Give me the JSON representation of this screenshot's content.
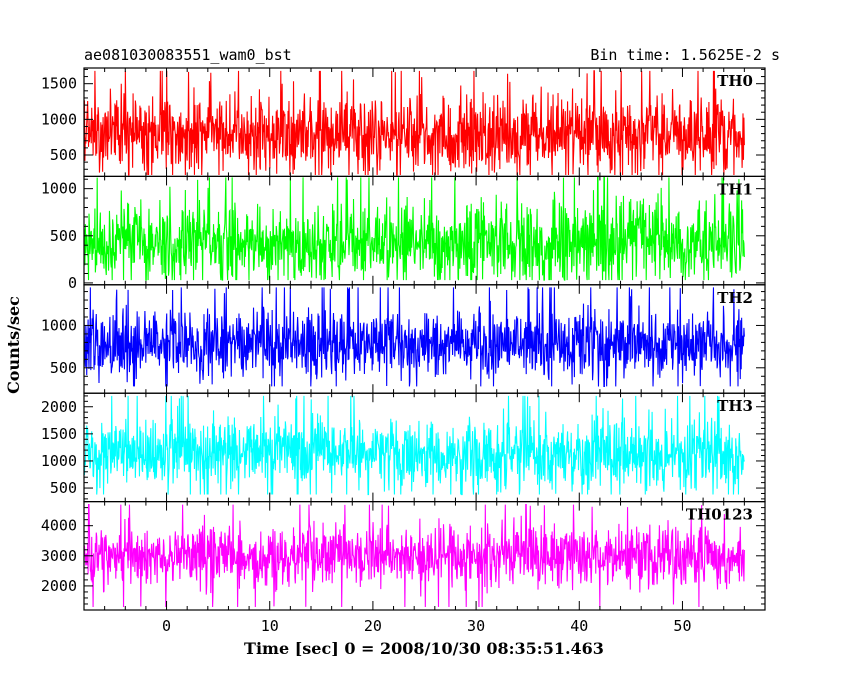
{
  "chart_data": {
    "type": "line",
    "title": "ae081030083551_wam0_bst",
    "subtitle": "Bin time: 1.5625E-2 s",
    "xlabel": "Time [sec] 0 = 2008/10/30 08:35:51.463",
    "ylabel": "Counts/sec",
    "xlim": [
      -8,
      58
    ],
    "x_data_range": [
      -8,
      56
    ],
    "xticks_major": [
      0,
      10,
      20,
      30,
      40,
      50
    ],
    "xtick_labels": [
      "0",
      "10",
      "20",
      "30",
      "40",
      "50"
    ],
    "grid": false,
    "panels": [
      {
        "name": "TH0",
        "color": "#ff0000",
        "ylim": [
          200,
          1720
        ],
        "yticks": [
          500,
          1000,
          1500
        ],
        "ytick_labels": [
          "500",
          "1000",
          "1500"
        ],
        "mean": 800,
        "low": 220,
        "high": 1680
      },
      {
        "name": "TH1",
        "color": "#00ff00",
        "ylim": [
          -20,
          1130
        ],
        "yticks": [
          0,
          500,
          1000
        ],
        "ytick_labels": [
          "0",
          "500",
          "1000"
        ],
        "mean": 420,
        "low": 30,
        "high": 1120
      },
      {
        "name": "TH2",
        "color": "#0000ff",
        "ylim": [
          200,
          1480
        ],
        "yticks": [
          500,
          1000
        ],
        "ytick_labels": [
          "500",
          "1000"
        ],
        "mean": 780,
        "low": 280,
        "high": 1450
      },
      {
        "name": "TH3",
        "color": "#00ffff",
        "ylim": [
          250,
          2250
        ],
        "yticks": [
          500,
          1000,
          1500,
          2000
        ],
        "ytick_labels": [
          "500",
          "1000",
          "1500",
          "2000"
        ],
        "mean": 1150,
        "low": 380,
        "high": 2200
      },
      {
        "name": "TH0123",
        "color": "#ff00ff",
        "ylim": [
          1200,
          4800
        ],
        "yticks": [
          2000,
          3000,
          4000
        ],
        "ytick_labels": [
          "2000",
          "3000",
          "4000"
        ],
        "mean": 3000,
        "low": 1300,
        "high": 4700
      }
    ]
  }
}
